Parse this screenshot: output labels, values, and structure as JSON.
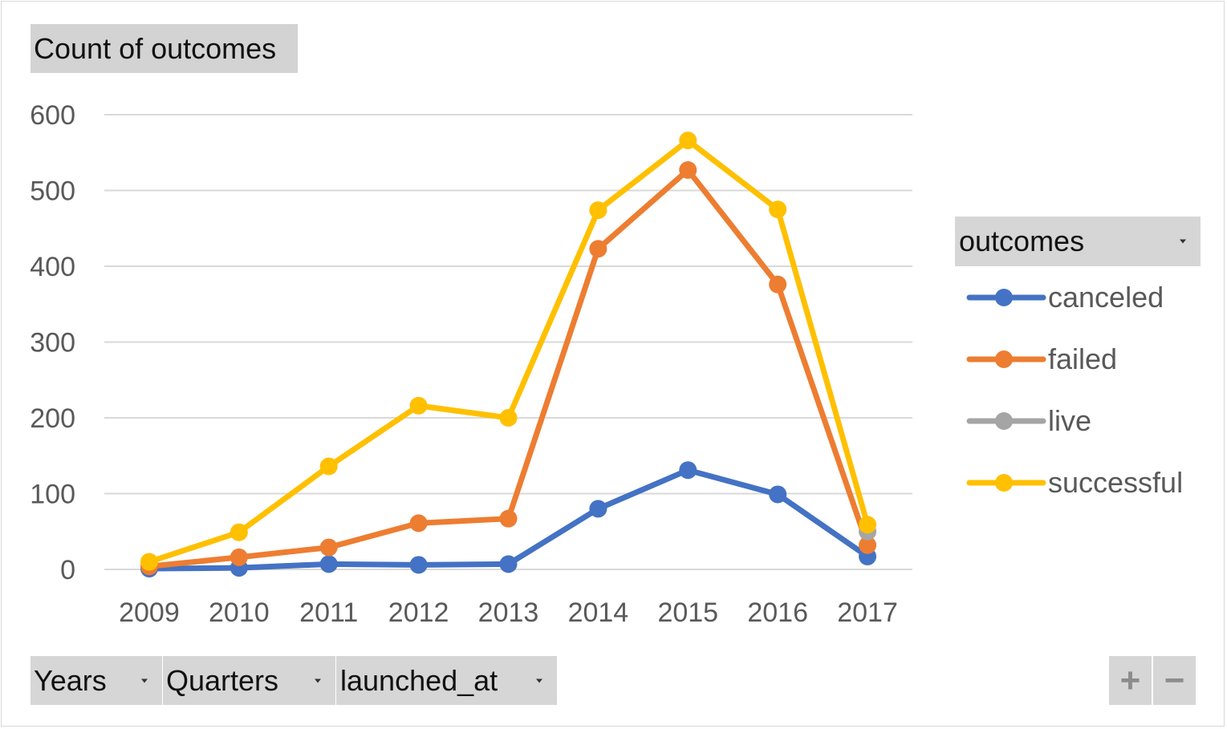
{
  "title_button": "Count of outcomes",
  "legend": {
    "header": "outcomes"
  },
  "fields": {
    "years": "Years",
    "quarters": "Quarters",
    "launched_at": "launched_at"
  },
  "zoom": {
    "plus": "+",
    "minus": "−"
  },
  "chart_data": {
    "type": "line",
    "title": "Count of outcomes",
    "xlabel": "",
    "ylabel": "",
    "categories": [
      "2009",
      "2010",
      "2011",
      "2012",
      "2013",
      "2014",
      "2015",
      "2016",
      "2017"
    ],
    "ylim": [
      0,
      600
    ],
    "yticks": [
      0,
      100,
      200,
      300,
      400,
      500,
      600
    ],
    "grid": true,
    "legend_position": "right",
    "series": [
      {
        "name": "canceled",
        "color": "#4472c4",
        "values": [
          1,
          2,
          7,
          6,
          7,
          80,
          131,
          99,
          17
        ]
      },
      {
        "name": "failed",
        "color": "#ed7d31",
        "values": [
          4,
          16,
          29,
          61,
          67,
          423,
          527,
          376,
          32
        ]
      },
      {
        "name": "live",
        "color": "#a5a5a5",
        "values": [
          null,
          null,
          null,
          null,
          null,
          null,
          null,
          null,
          50
        ]
      },
      {
        "name": "successful",
        "color": "#ffc000",
        "values": [
          10,
          49,
          136,
          216,
          200,
          474,
          566,
          475,
          59
        ]
      }
    ]
  }
}
